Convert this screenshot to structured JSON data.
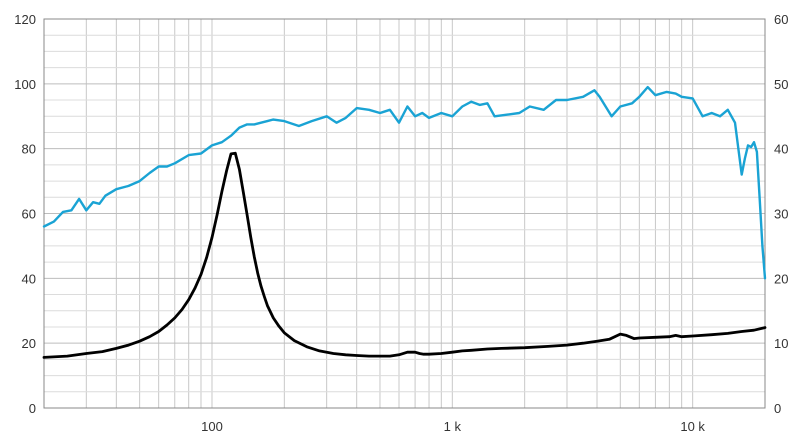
{
  "chart_data": {
    "type": "line",
    "title": "",
    "xlabel": "",
    "ylabel": "",
    "y2label": "",
    "x_scale": "log",
    "xlim": [
      20,
      20000
    ],
    "ylim": [
      0,
      120
    ],
    "y2lim": [
      0,
      60
    ],
    "grid": true,
    "legend": "none",
    "x_tick_values": [
      100,
      1000,
      10000
    ],
    "x_tick_labels": [
      "100",
      "1 k",
      "10 k"
    ],
    "y_ticks": [
      0,
      20,
      40,
      60,
      80,
      100,
      120
    ],
    "y2_ticks": [
      0,
      10,
      20,
      30,
      40,
      50,
      60
    ],
    "colors": {
      "spl": "#1aa3d4",
      "impedance": "#000000",
      "grid": "#c8c8c8",
      "axis": "#888888"
    },
    "series": [
      {
        "key": "spl",
        "axis": "left",
        "x": [
          20,
          22,
          24,
          26,
          28,
          30,
          32,
          34,
          36,
          40,
          45,
          50,
          55,
          60,
          65,
          70,
          80,
          90,
          100,
          110,
          120,
          130,
          140,
          150,
          160,
          170,
          180,
          200,
          230,
          260,
          300,
          330,
          360,
          400,
          450,
          500,
          550,
          600,
          650,
          700,
          750,
          800,
          900,
          1000,
          1100,
          1200,
          1300,
          1400,
          1500,
          1700,
          1900,
          2100,
          2400,
          2700,
          3000,
          3500,
          3900,
          4100,
          4600,
          5000,
          5600,
          6000,
          6500,
          7000,
          7800,
          8500,
          9000,
          10000,
          11000,
          12000,
          13000,
          14000,
          15000,
          16000,
          16500,
          17000,
          17500,
          18000,
          18500,
          19000,
          19500,
          20000
        ],
        "values": [
          56,
          57.5,
          60.5,
          61,
          64.5,
          61,
          63.5,
          63,
          65.5,
          67.5,
          68.5,
          70,
          72.5,
          74.5,
          74.5,
          75.5,
          78,
          78.5,
          81,
          82,
          84,
          86.5,
          87.5,
          87.5,
          88,
          88.5,
          89,
          88.5,
          87,
          88.5,
          90,
          88,
          89.5,
          92.5,
          92,
          91,
          92,
          88,
          93,
          90,
          91,
          89.5,
          91,
          90,
          93,
          94.5,
          93.5,
          94,
          90,
          90.5,
          91,
          93,
          92,
          95,
          95,
          96,
          98,
          96,
          90,
          93,
          94,
          96,
          99,
          96.5,
          97.5,
          97,
          96,
          95.5,
          90,
          91,
          90,
          92,
          88,
          72,
          77,
          81,
          80.5,
          82,
          79,
          65,
          50,
          40
        ]
      },
      {
        "key": "impedance",
        "axis": "right",
        "x": [
          20,
          25,
          30,
          35,
          40,
          45,
          50,
          55,
          60,
          65,
          70,
          75,
          80,
          85,
          90,
          95,
          100,
          105,
          110,
          115,
          120,
          125,
          130,
          135,
          140,
          145,
          150,
          155,
          160,
          165,
          170,
          180,
          190,
          200,
          220,
          250,
          280,
          320,
          360,
          400,
          450,
          500,
          550,
          600,
          650,
          700,
          730,
          760,
          800,
          900,
          1000,
          1100,
          1200,
          1400,
          1600,
          2000,
          2500,
          3000,
          3500,
          4000,
          4500,
          5000,
          5300,
          5700,
          6000,
          7000,
          8000,
          8500,
          9000,
          10000,
          12000,
          14000,
          16000,
          18000,
          20000
        ],
        "values": [
          7.8,
          8,
          8.4,
          8.7,
          9.2,
          9.7,
          10.3,
          11,
          11.8,
          12.8,
          13.9,
          15.2,
          16.7,
          18.5,
          20.6,
          23.2,
          26.3,
          29.8,
          33.4,
          36.6,
          39.2,
          39.3,
          36.8,
          33.3,
          29.8,
          26.3,
          23.3,
          20.8,
          18.8,
          17.2,
          15.8,
          13.9,
          12.6,
          11.6,
          10.4,
          9.4,
          8.8,
          8.4,
          8.2,
          8.1,
          8,
          8,
          8,
          8.2,
          8.6,
          8.6,
          8.4,
          8.3,
          8.3,
          8.4,
          8.6,
          8.8,
          8.9,
          9.1,
          9.2,
          9.3,
          9.5,
          9.7,
          10,
          10.3,
          10.6,
          11.4,
          11.2,
          10.7,
          10.8,
          10.9,
          11,
          11.2,
          11,
          11.1,
          11.3,
          11.5,
          11.8,
          12,
          12.4
        ]
      }
    ]
  }
}
